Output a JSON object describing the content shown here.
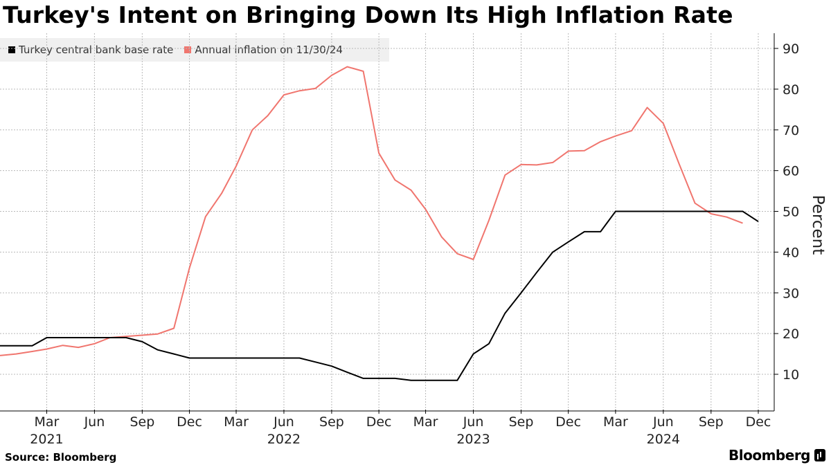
{
  "title": "Turkey's Intent on Bringing Down Its High Inflation Rate",
  "source": "Source: Bloomberg",
  "brand": "Bloomberg",
  "colors": {
    "base_rate": "#000000",
    "inflation": "#f0756e",
    "grid": "#b8b8b8",
    "legend_bg": "#f0f0f0"
  },
  "chart_data": {
    "type": "line",
    "title": "Turkey's Intent on Bringing Down Its High Inflation Rate",
    "ylabel": "Percent",
    "ylim": [
      0,
      93
    ],
    "yticks": [
      10,
      20,
      30,
      40,
      50,
      60,
      70,
      80,
      90
    ],
    "y_axis_side": "right",
    "grid": true,
    "legend_position": "top-left",
    "x_ticks": [
      {
        "date": "2021-03-01",
        "label": "Mar",
        "year": "2021"
      },
      {
        "date": "2021-06-01",
        "label": "Jun",
        "year": ""
      },
      {
        "date": "2021-09-01",
        "label": "Sep",
        "year": ""
      },
      {
        "date": "2021-12-01",
        "label": "Dec",
        "year": ""
      },
      {
        "date": "2022-03-01",
        "label": "Mar",
        "year": ""
      },
      {
        "date": "2022-06-01",
        "label": "Jun",
        "year": "2022"
      },
      {
        "date": "2022-09-01",
        "label": "Sep",
        "year": ""
      },
      {
        "date": "2022-12-01",
        "label": "Dec",
        "year": ""
      },
      {
        "date": "2023-03-01",
        "label": "Mar",
        "year": ""
      },
      {
        "date": "2023-06-01",
        "label": "Jun",
        "year": "2023"
      },
      {
        "date": "2023-09-01",
        "label": "Sep",
        "year": ""
      },
      {
        "date": "2023-12-01",
        "label": "Dec",
        "year": ""
      },
      {
        "date": "2024-03-01",
        "label": "Mar",
        "year": ""
      },
      {
        "date": "2024-06-01",
        "label": "Jun",
        "year": "2024"
      },
      {
        "date": "2024-09-01",
        "label": "Sep",
        "year": ""
      },
      {
        "date": "2024-12-01",
        "label": "Dec",
        "year": ""
      }
    ],
    "series": [
      {
        "name": "Turkey central bank base rate",
        "color": "#000000",
        "points": [
          [
            "2020-12-01",
            17
          ],
          [
            "2021-01-01",
            17
          ],
          [
            "2021-02-01",
            17
          ],
          [
            "2021-03-01",
            19
          ],
          [
            "2021-04-01",
            19
          ],
          [
            "2021-05-01",
            19
          ],
          [
            "2021-06-01",
            19
          ],
          [
            "2021-07-01",
            19
          ],
          [
            "2021-08-01",
            19
          ],
          [
            "2021-09-01",
            18
          ],
          [
            "2021-10-01",
            16
          ],
          [
            "2021-11-01",
            15
          ],
          [
            "2021-12-01",
            14
          ],
          [
            "2022-01-01",
            14
          ],
          [
            "2022-02-01",
            14
          ],
          [
            "2022-03-01",
            14
          ],
          [
            "2022-04-01",
            14
          ],
          [
            "2022-05-01",
            14
          ],
          [
            "2022-06-01",
            14
          ],
          [
            "2022-07-01",
            14
          ],
          [
            "2022-08-01",
            13
          ],
          [
            "2022-09-01",
            12
          ],
          [
            "2022-10-01",
            10.5
          ],
          [
            "2022-11-01",
            9
          ],
          [
            "2022-12-01",
            9
          ],
          [
            "2023-01-01",
            9
          ],
          [
            "2023-02-01",
            8.5
          ],
          [
            "2023-03-01",
            8.5
          ],
          [
            "2023-04-01",
            8.5
          ],
          [
            "2023-05-01",
            8.5
          ],
          [
            "2023-06-01",
            15
          ],
          [
            "2023-07-01",
            17.5
          ],
          [
            "2023-08-01",
            25
          ],
          [
            "2023-09-01",
            30
          ],
          [
            "2023-10-01",
            35
          ],
          [
            "2023-11-01",
            40
          ],
          [
            "2023-12-01",
            42.5
          ],
          [
            "2024-01-01",
            45
          ],
          [
            "2024-02-01",
            45
          ],
          [
            "2024-03-01",
            50
          ],
          [
            "2024-04-01",
            50
          ],
          [
            "2024-05-01",
            50
          ],
          [
            "2024-06-01",
            50
          ],
          [
            "2024-07-01",
            50
          ],
          [
            "2024-08-01",
            50
          ],
          [
            "2024-09-01",
            50
          ],
          [
            "2024-10-01",
            50
          ],
          [
            "2024-11-01",
            50
          ],
          [
            "2024-12-01",
            47.5
          ]
        ]
      },
      {
        "name": "Annual inflation on 11/30/24",
        "color": "#f0756e",
        "points": [
          [
            "2020-12-01",
            14.6
          ],
          [
            "2021-01-01",
            15.0
          ],
          [
            "2021-02-01",
            15.6
          ],
          [
            "2021-03-01",
            16.2
          ],
          [
            "2021-04-01",
            17.1
          ],
          [
            "2021-05-01",
            16.6
          ],
          [
            "2021-06-01",
            17.5
          ],
          [
            "2021-07-01",
            19.0
          ],
          [
            "2021-08-01",
            19.3
          ],
          [
            "2021-09-01",
            19.6
          ],
          [
            "2021-10-01",
            19.9
          ],
          [
            "2021-11-01",
            21.3
          ],
          [
            "2021-12-01",
            36.1
          ],
          [
            "2022-01-01",
            48.7
          ],
          [
            "2022-02-01",
            54.4
          ],
          [
            "2022-03-01",
            61.1
          ],
          [
            "2022-04-01",
            70.0
          ],
          [
            "2022-05-01",
            73.5
          ],
          [
            "2022-06-01",
            78.6
          ],
          [
            "2022-07-01",
            79.6
          ],
          [
            "2022-08-01",
            80.2
          ],
          [
            "2022-09-01",
            83.4
          ],
          [
            "2022-10-01",
            85.5
          ],
          [
            "2022-11-01",
            84.4
          ],
          [
            "2022-12-01",
            64.3
          ],
          [
            "2023-01-01",
            57.7
          ],
          [
            "2023-02-01",
            55.2
          ],
          [
            "2023-03-01",
            50.5
          ],
          [
            "2023-04-01",
            43.7
          ],
          [
            "2023-05-01",
            39.6
          ],
          [
            "2023-06-01",
            38.2
          ],
          [
            "2023-07-01",
            47.8
          ],
          [
            "2023-08-01",
            58.9
          ],
          [
            "2023-09-01",
            61.5
          ],
          [
            "2023-10-01",
            61.4
          ],
          [
            "2023-11-01",
            62.0
          ],
          [
            "2023-12-01",
            64.8
          ],
          [
            "2024-01-01",
            64.9
          ],
          [
            "2024-02-01",
            67.1
          ],
          [
            "2024-03-01",
            68.5
          ],
          [
            "2024-04-01",
            69.8
          ],
          [
            "2024-05-01",
            75.5
          ],
          [
            "2024-06-01",
            71.6
          ],
          [
            "2024-07-01",
            61.8
          ],
          [
            "2024-08-01",
            52.0
          ],
          [
            "2024-09-01",
            49.4
          ],
          [
            "2024-10-01",
            48.6
          ],
          [
            "2024-11-01",
            47.1
          ]
        ]
      }
    ]
  }
}
